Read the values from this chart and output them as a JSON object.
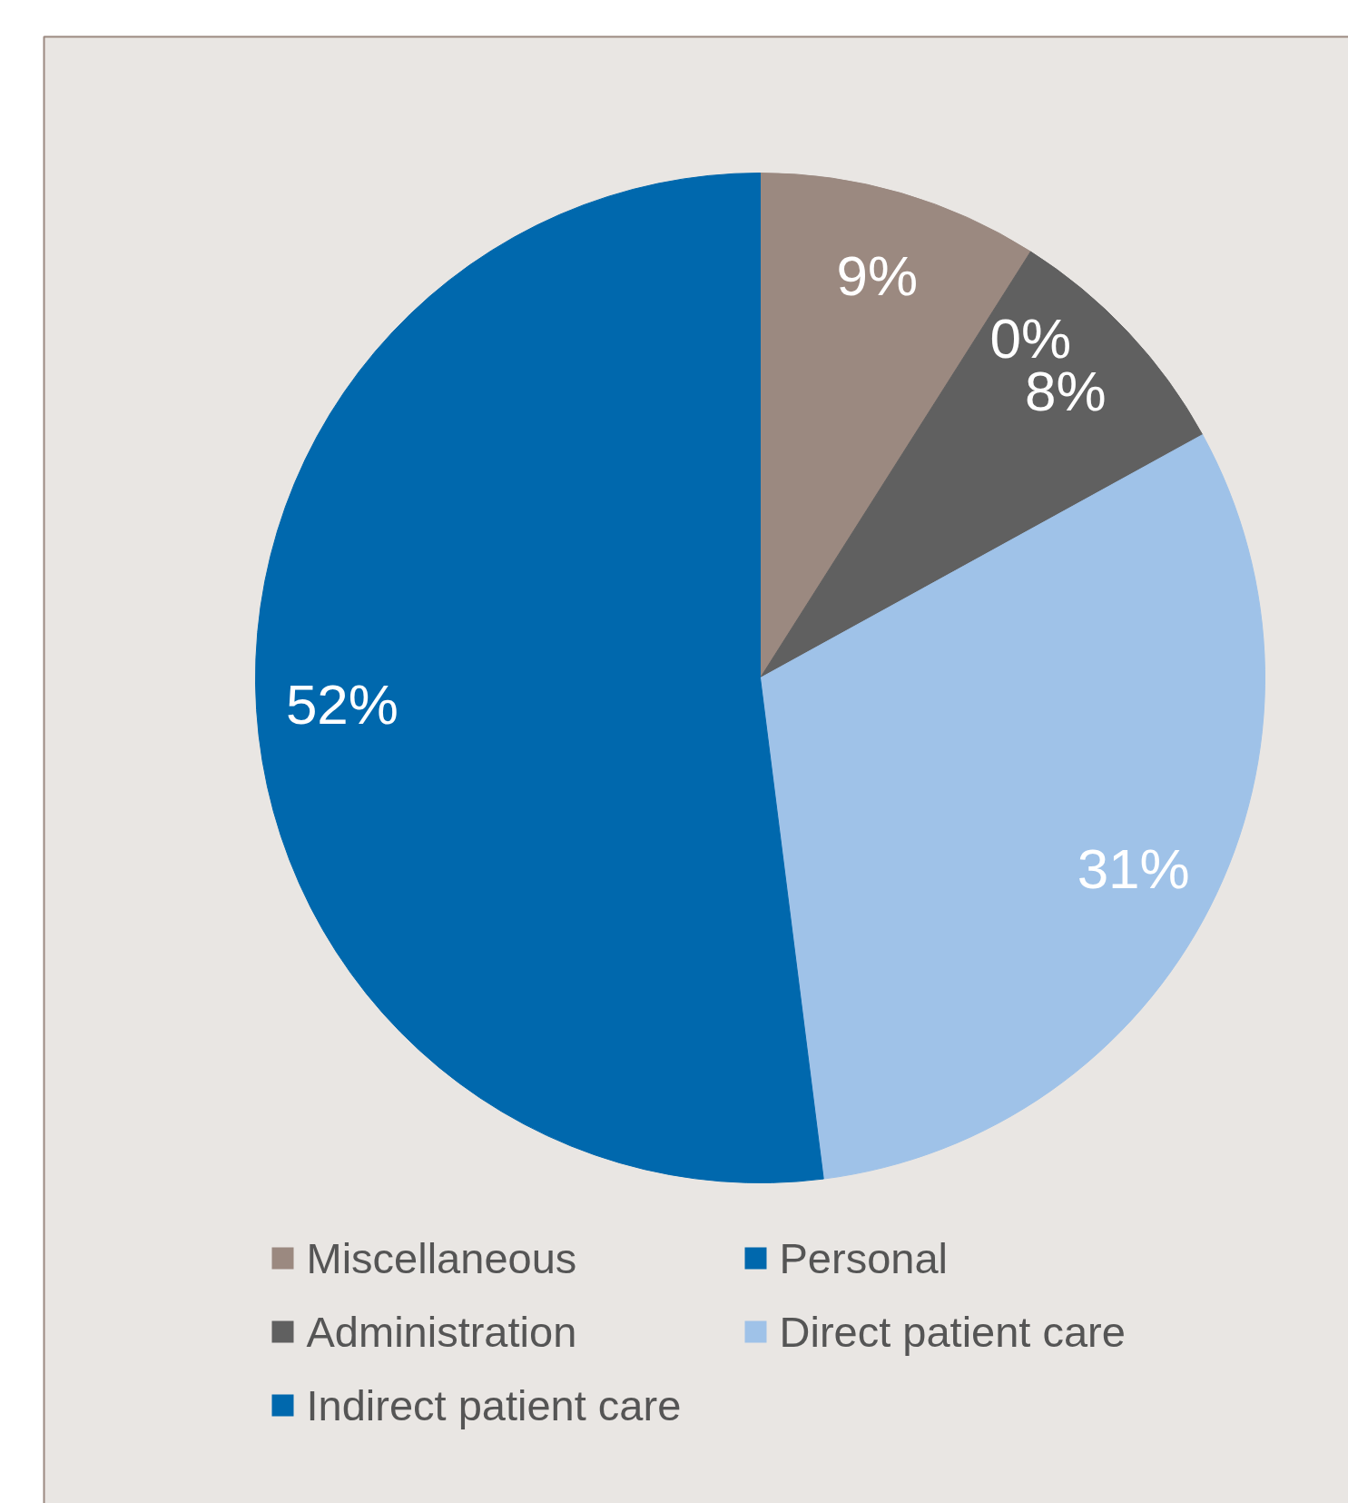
{
  "chart_data": {
    "type": "pie",
    "categories": [
      "Miscellaneous",
      "Personal",
      "Administration",
      "Direct patient care",
      "Indirect patient care"
    ],
    "values": [
      9,
      0,
      8,
      31,
      52
    ],
    "colors": [
      "#9b8980",
      "#0068ad",
      "#606060",
      "#9fc2e8",
      "#0068ad"
    ],
    "value_labels": [
      "9%",
      "0%",
      "8%",
      "31%",
      "52%"
    ],
    "legend": "bottom"
  }
}
